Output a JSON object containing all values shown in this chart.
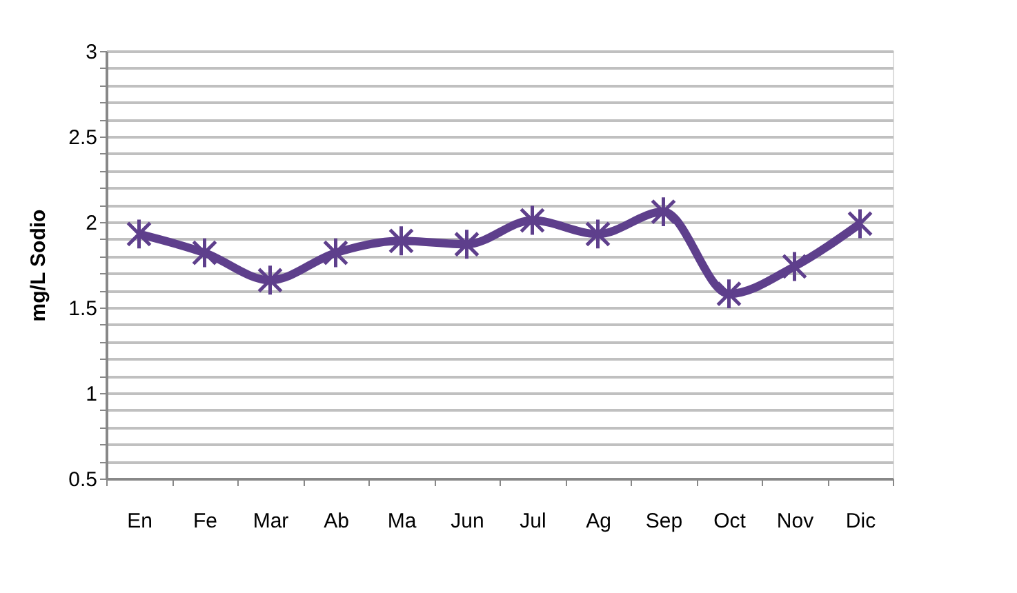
{
  "chart_data": {
    "type": "line",
    "ylabel": "mg/L Sodio",
    "categories": [
      "En",
      "Fe",
      "Mar",
      "Ab",
      "Ma",
      "Jun",
      "Jul",
      "Ag",
      "Sep",
      "Oct",
      "Nov",
      "Dic"
    ],
    "series": [
      {
        "color": "#5e3f8c",
        "values": [
          1.93,
          1.82,
          1.66,
          1.82,
          1.89,
          1.87,
          2.01,
          1.93,
          2.06,
          1.58,
          1.74,
          1.99
        ]
      }
    ],
    "ylim": [
      0.5,
      3
    ],
    "yticks": [
      0.5,
      {
        "value": 0.6,
        "label": null
      },
      {
        "value": 0.7,
        "label": null
      },
      {
        "value": 0.8,
        "label": null
      },
      {
        "value": 0.9,
        "label": null
      },
      1,
      {
        "value": 1.1,
        "label": null
      },
      {
        "value": 1.2,
        "label": null
      },
      {
        "value": 1.3,
        "label": null
      },
      {
        "value": 1.4,
        "label": null
      },
      1.5,
      {
        "value": 1.6,
        "label": null
      },
      {
        "value": 1.7,
        "label": null
      },
      {
        "value": 1.8,
        "label": null
      },
      {
        "value": 1.9,
        "label": null
      },
      2,
      {
        "value": 2.1,
        "label": null
      },
      {
        "value": 2.2,
        "label": null
      },
      {
        "value": 2.3,
        "label": null
      },
      {
        "value": 2.4,
        "label": null
      },
      2.5,
      {
        "value": 2.6,
        "label": null
      },
      {
        "value": 2.7,
        "label": null
      },
      {
        "value": 2.8,
        "label": null
      },
      {
        "value": 2.9,
        "label": null
      },
      3
    ],
    "grid": "y",
    "marker": "cross",
    "line_style": "solid"
  }
}
